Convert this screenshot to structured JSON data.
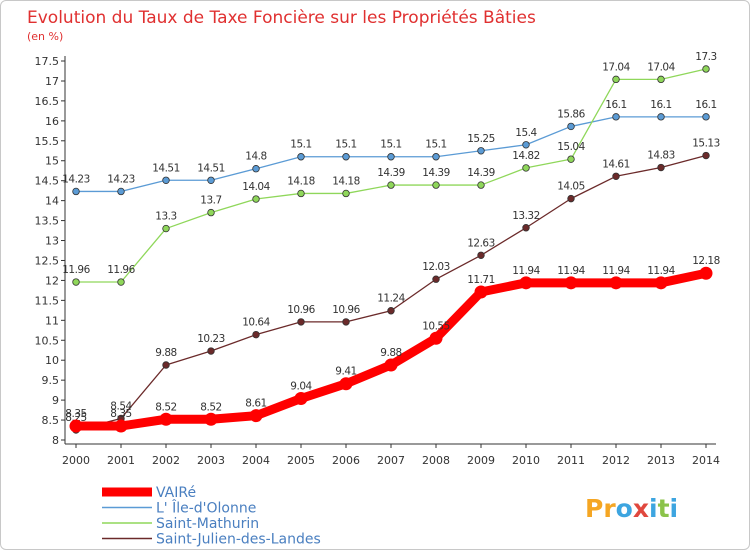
{
  "chart_data": {
    "type": "line",
    "title": "Evolution du Taux de Taxe Foncière sur les Propriétés Bâties",
    "ylabel": "(en %)",
    "xlabel": "",
    "ylim": [
      8,
      17.5
    ],
    "yticks": [
      "8",
      "8.5",
      "9",
      "9.5",
      "10",
      "10.5",
      "11",
      "11.5",
      "12",
      "12.5",
      "13",
      "13.5",
      "14",
      "14.5",
      "15",
      "15.5",
      "16",
      "16.5",
      "17",
      "17.5"
    ],
    "x": [
      "2000",
      "2001",
      "2002",
      "2003",
      "2004",
      "2005",
      "2006",
      "2007",
      "2008",
      "2009",
      "2010",
      "2011",
      "2012",
      "2013",
      "2014"
    ],
    "grid": false,
    "legend_position": "bottom-left",
    "series": [
      {
        "name": "VAIRé",
        "color": "#ff0000",
        "bold": true,
        "values": [
          8.35,
          8.35,
          8.52,
          8.52,
          8.61,
          9.04,
          9.41,
          9.88,
          10.55,
          11.71,
          11.94,
          11.94,
          11.94,
          11.94,
          12.18
        ],
        "labels": [
          "8.35",
          "8.35",
          "8.52",
          "8.52",
          "8.61",
          "9.04",
          "9.41",
          "9.88",
          "10.55",
          "11.71",
          "11.94",
          "11.94",
          "11.94",
          "11.94",
          "12.18"
        ]
      },
      {
        "name": "L' Île-d'Olonne",
        "color": "#5b9bd5",
        "values": [
          14.23,
          14.23,
          14.51,
          14.51,
          14.8,
          15.1,
          15.1,
          15.1,
          15.1,
          15.25,
          15.4,
          15.86,
          16.1,
          16.1,
          16.1
        ],
        "labels": [
          "14.23",
          "14.23",
          "14.51",
          "14.51",
          "14.8",
          "15.1",
          "15.1",
          "15.1",
          "15.1",
          "15.25",
          "15.4",
          "15.86",
          "16.1",
          "16.1",
          "16.1"
        ]
      },
      {
        "name": "Saint-Mathurin",
        "color": "#8fd75a",
        "values": [
          11.96,
          11.96,
          13.3,
          13.7,
          14.04,
          14.18,
          14.18,
          14.39,
          14.39,
          14.39,
          14.82,
          15.04,
          17.04,
          17.04,
          17.3
        ],
        "labels": [
          "11.96",
          "11.96",
          "13.3",
          "13.7",
          "14.04",
          "14.18",
          "14.18",
          "14.39",
          "14.39",
          "14.39",
          "14.82",
          "15.04",
          "17.04",
          "17.04",
          "17.3"
        ]
      },
      {
        "name": "Saint-Julien-des-Landes",
        "color": "#6b2a2a",
        "values": [
          8.25,
          8.54,
          9.88,
          10.23,
          10.64,
          10.96,
          10.96,
          11.24,
          12.03,
          12.63,
          13.32,
          14.05,
          14.61,
          14.83,
          15.13
        ],
        "labels": [
          "8.25",
          "8.54",
          "9.88",
          "10.23",
          "10.64",
          "10.96",
          "10.96",
          "11.24",
          "12.03",
          "12.63",
          "13.32",
          "14.05",
          "14.61",
          "14.83",
          "15.13"
        ]
      }
    ]
  },
  "logo": {
    "text": "Proxiti",
    "colors": [
      "#f39c12",
      "#3498db",
      "#e74c3c",
      "#2ecc71"
    ]
  }
}
